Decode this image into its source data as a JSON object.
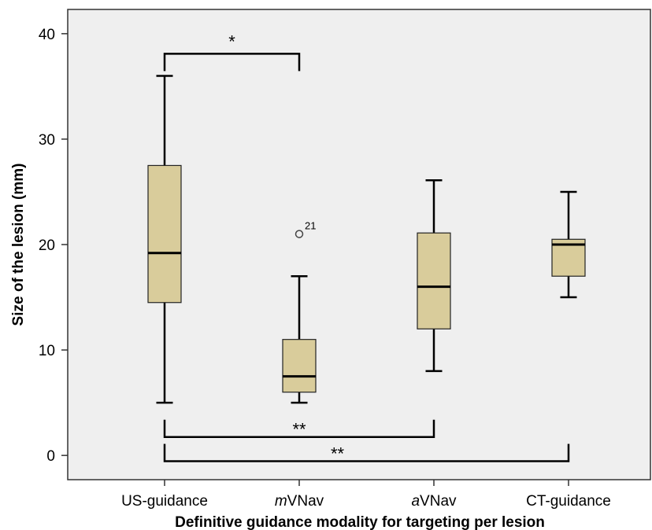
{
  "chart_data": {
    "type": "box",
    "xlabel": "Definitive guidance modality for targeting per lesion",
    "ylabel": "Size of the lesion (mm)",
    "ylim": [
      -2.3,
      42.3
    ],
    "yticks": [
      0,
      10,
      20,
      30,
      40
    ],
    "grid": false,
    "background_color": "#efefef",
    "box_color": "#d9cc9b",
    "categories": [
      {
        "label": "US-guidance",
        "label_prefix": "",
        "label_rest": "US-guidance",
        "min": 5,
        "q1": 14.5,
        "median": 19.2,
        "q3": 27.5,
        "max": 36,
        "outliers": []
      },
      {
        "label": "mVNav",
        "label_prefix": "m",
        "label_rest": "VNav",
        "min": 5,
        "q1": 6,
        "median": 7.5,
        "q3": 11,
        "max": 17,
        "outliers": [
          {
            "value": 21,
            "label": "21"
          }
        ]
      },
      {
        "label": "aVNav",
        "label_prefix": "a",
        "label_rest": "VNav",
        "min": 8,
        "q1": 12,
        "median": 16,
        "q3": 21.1,
        "max": 26.1,
        "outliers": []
      },
      {
        "label": "CT-guidance",
        "label_prefix": "",
        "label_rest": "CT-guidance",
        "min": 15,
        "q1": 17,
        "median": 20,
        "q3": 20.5,
        "max": 25,
        "outliers": []
      }
    ],
    "significance": [
      {
        "from": 0,
        "to": 1,
        "label": "*",
        "y": 38.1,
        "tick_dir": "down"
      },
      {
        "from": 0,
        "to": 2,
        "label": "**",
        "y": 1.75,
        "tick_dir": "up"
      },
      {
        "from": 0,
        "to": 3,
        "label": "**",
        "y": -0.55,
        "tick_dir": "up"
      }
    ]
  }
}
